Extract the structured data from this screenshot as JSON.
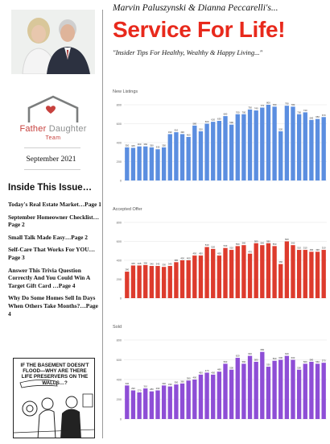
{
  "sidebar": {
    "logo": {
      "word1": "Father",
      "word2": "Daughter",
      "sub": "Team"
    },
    "date": "September 2021",
    "inside_title": "Inside This Issue…",
    "toc": [
      "Today's Real Estate Market…Page 1",
      "September Homeowner Checklist…Page 2",
      "Small Talk Made Easy…Page 2",
      "Self-Care That Works For YOU…Page 3",
      "Answer This Trivia Question Correctly And You Could Win A Target Gift Card …Page 4",
      "Why Do Some Homes Sell In Days When Others Take Months?…Page 4"
    ],
    "cartoon_caption": "IF THE BASEMENT DOESN'T FLOOD—WHY ARE THERE LIFE PRESERVERS ON THE WALLS…?"
  },
  "header": {
    "authors": "Marvin Paluszynski & Dianna Peccarelli's...",
    "brand": "Service For Life!",
    "tagline": "\"Insider Tips For Healthy, Wealthy & Happy Living...\""
  },
  "colors": {
    "listings": "#5b8ee0",
    "accepted": "#dd3b2d",
    "sold": "#8e4ed6",
    "brand": "#e8291c"
  },
  "chart_data": [
    {
      "type": "bar",
      "title": "New Listings",
      "ylim": [
        0,
        800
      ],
      "yticks": [
        0,
        200,
        400,
        600,
        800
      ],
      "color": "#5b8ee0",
      "values": [
        350,
        345,
        360,
        360,
        350,
        330,
        350,
        490,
        510,
        490,
        460,
        580,
        520,
        600,
        620,
        630,
        680,
        590,
        700,
        700,
        750,
        740,
        770,
        800,
        780,
        520,
        790,
        780,
        700,
        720,
        640,
        650,
        670
      ]
    },
    {
      "type": "bar",
      "title": "Accepted Offer",
      "ylim": [
        0,
        800
      ],
      "yticks": [
        0,
        200,
        400,
        600,
        800
      ],
      "color": "#dd3b2d",
      "values": [
        280,
        345,
        345,
        350,
        340,
        340,
        330,
        340,
        380,
        400,
        400,
        450,
        450,
        540,
        520,
        450,
        530,
        510,
        550,
        560,
        470,
        580,
        560,
        580,
        550,
        360,
        600,
        560,
        510,
        510,
        490,
        490,
        510
      ]
    },
    {
      "type": "bar",
      "title": "Sold",
      "ylim": [
        0,
        800
      ],
      "yticks": [
        0,
        200,
        400,
        600,
        800
      ],
      "color": "#8e4ed6",
      "values": [
        340,
        290,
        270,
        310,
        280,
        290,
        340,
        330,
        350,
        360,
        390,
        400,
        450,
        470,
        450,
        480,
        560,
        500,
        620,
        560,
        640,
        580,
        680,
        530,
        590,
        600,
        640,
        600,
        500,
        560,
        580,
        560,
        570
      ]
    }
  ]
}
